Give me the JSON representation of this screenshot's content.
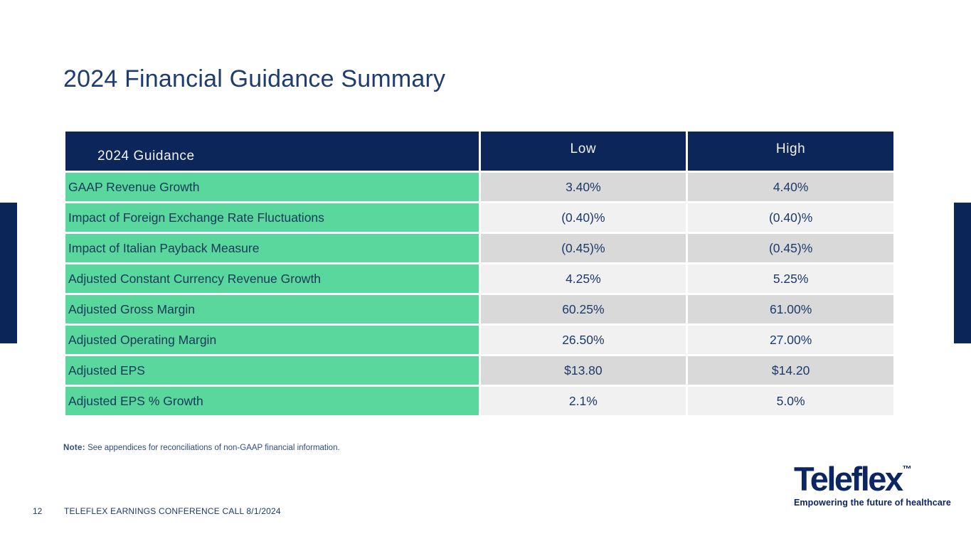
{
  "slide": {
    "title": "2024 Financial Guidance Summary"
  },
  "table": {
    "headers": {
      "guidance": "2024 Guidance",
      "low": "Low",
      "high": "High"
    },
    "rows": [
      {
        "label": "GAAP Revenue Growth",
        "low": "3.40%",
        "high": "4.40%"
      },
      {
        "label": "Impact of Foreign Exchange Rate Fluctuations",
        "low": "(0.40)%",
        "high": "(0.40)%"
      },
      {
        "label": "Impact of Italian Payback Measure",
        "low": "(0.45)%",
        "high": "(0.45)%"
      },
      {
        "label": "Adjusted Constant Currency Revenue Growth",
        "low": "4.25%",
        "high": "5.25%"
      },
      {
        "label": "Adjusted Gross Margin",
        "low": "60.25%",
        "high": "61.00%"
      },
      {
        "label": "Adjusted Operating Margin",
        "low": "26.50%",
        "high": "27.00%"
      },
      {
        "label": "Adjusted EPS",
        "low": "$13.80",
        "high": "$14.20"
      },
      {
        "label": "Adjusted EPS % Growth",
        "low": "2.1%",
        "high": "5.0%"
      }
    ]
  },
  "note": {
    "prefix": "Note:",
    "text": " See appendices for reconciliations of non-GAAP financial information."
  },
  "footer": {
    "page_number": "12",
    "text": "TELEFLEX EARNINGS CONFERENCE CALL 8/1/2024"
  },
  "logo": {
    "wordmark": "Teleflex",
    "trademark": "™",
    "tagline": "Empowering the future of healthcare"
  },
  "colors": {
    "brand_navy": "#0d2659",
    "title_navy": "#1e3c6f",
    "mint_green": "#5ad79d",
    "row_gray_dark": "#d9d9d9",
    "row_gray_light": "#f1f1f1"
  }
}
